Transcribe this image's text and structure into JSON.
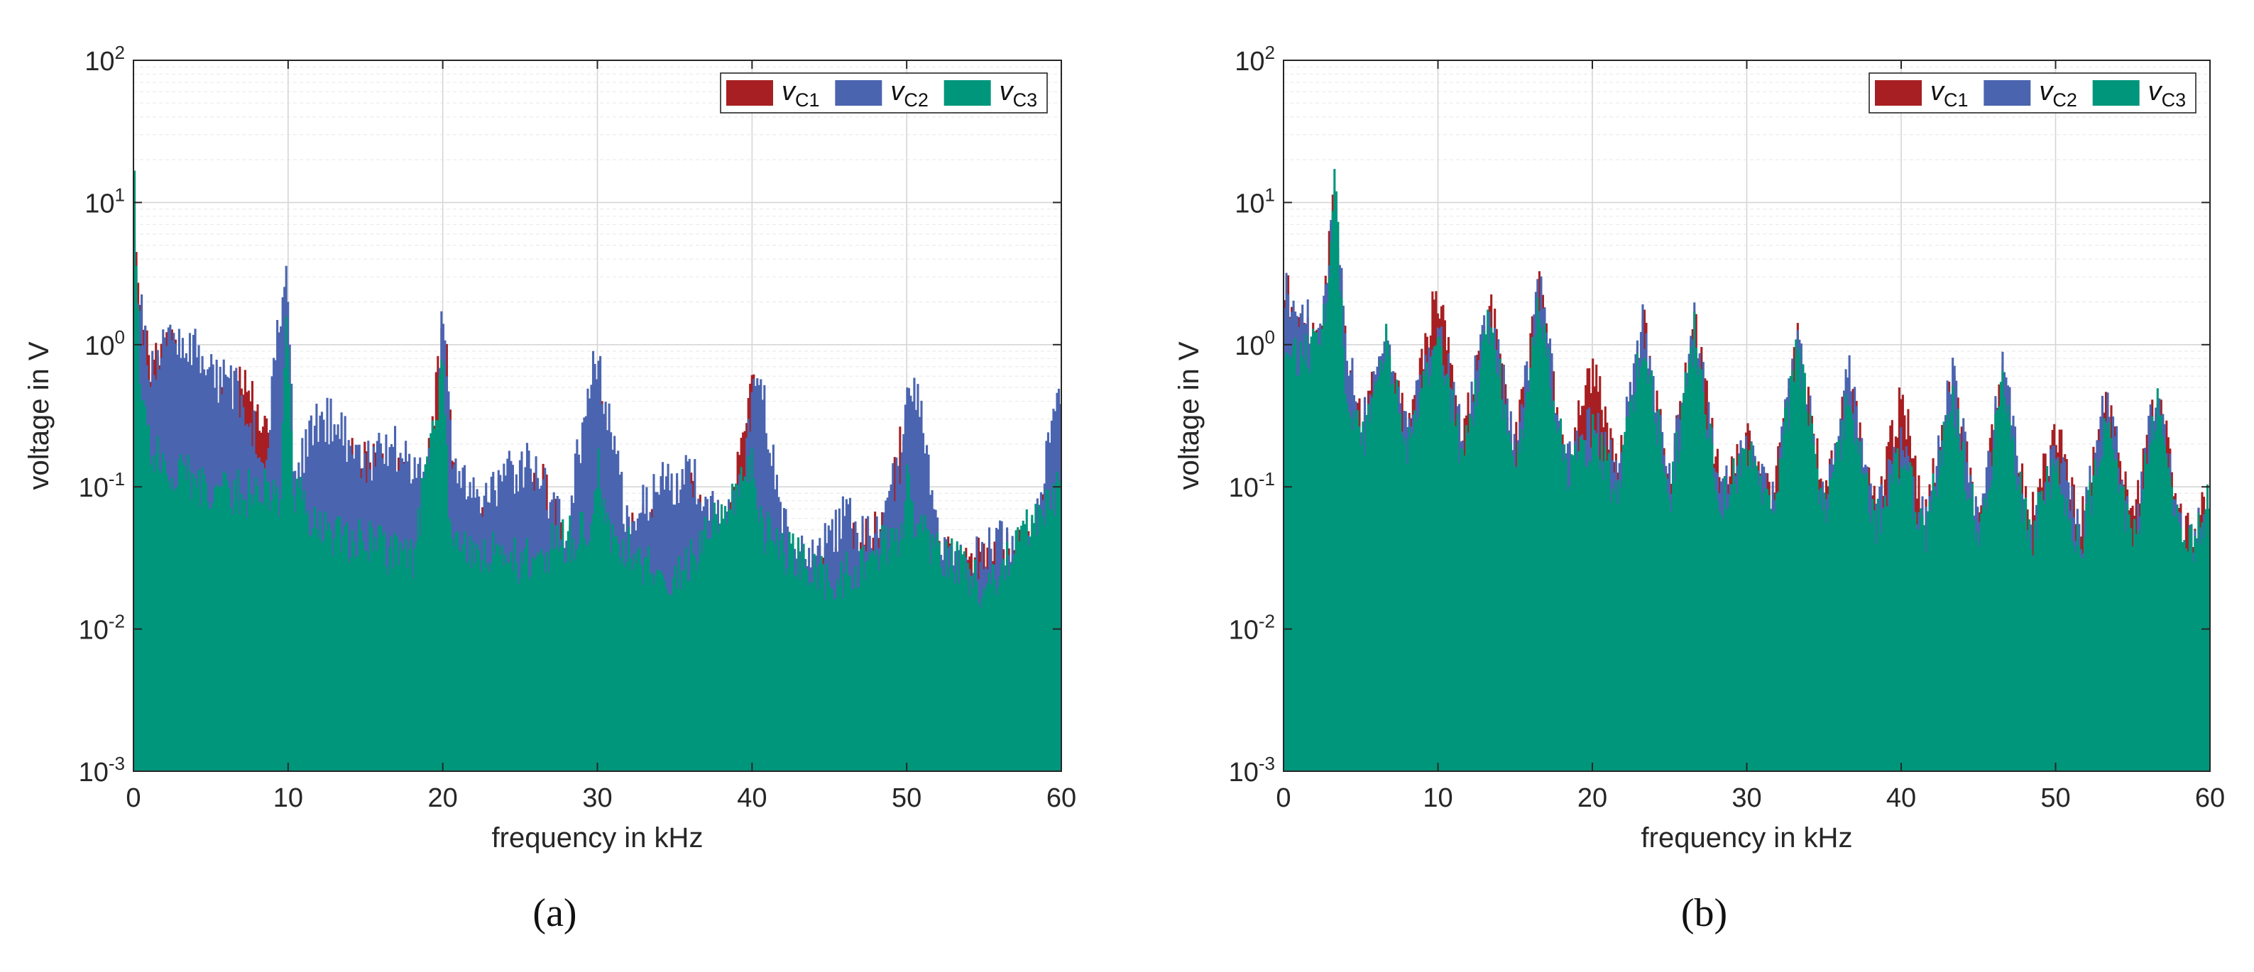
{
  "chart_data": [
    {
      "type": "bar",
      "panel": "(a)",
      "caption": "(a)",
      "xlabel": "frequency in kHz",
      "ylabel": "voltage in V",
      "xlim": [
        0,
        60
      ],
      "ylim": [
        0.001,
        100
      ],
      "yscale": "log",
      "xticks": [
        "0",
        "10",
        "20",
        "30",
        "40",
        "50",
        "60"
      ],
      "xtick_values": [
        0,
        10,
        20,
        30,
        40,
        50,
        60
      ],
      "yticks": [
        {
          "base": "10",
          "exp": "-3"
        },
        {
          "base": "10",
          "exp": "-2"
        },
        {
          "base": "10",
          "exp": "-1"
        },
        {
          "base": "10",
          "exp": "0"
        },
        {
          "base": "10",
          "exp": "1"
        },
        {
          "base": "10",
          "exp": "2"
        }
      ],
      "ytick_values": [
        0.001,
        0.01,
        0.1,
        1,
        10,
        100
      ],
      "grid": true,
      "legend_position": "top-right",
      "series": [
        {
          "name": "vC1",
          "label": "v",
          "sub": "C1",
          "color": "#a71f22",
          "floor": 0.022,
          "points": [
            [
              0,
              6
            ],
            [
              0.15,
              3.5
            ],
            [
              0.4,
              2.2
            ],
            [
              1,
              0.8
            ],
            [
              2.6,
              0.95
            ],
            [
              3.3,
              0.55
            ],
            [
              4.5,
              0.25
            ],
            [
              7.2,
              0.55
            ],
            [
              8.8,
              0.22
            ],
            [
              9.9,
              0.4
            ],
            [
              10.2,
              0.08
            ],
            [
              12.5,
              0.18
            ],
            [
              17,
              0.12
            ],
            [
              18.5,
              0.07
            ],
            [
              20.1,
              1.3
            ],
            [
              21,
              0.05
            ],
            [
              24,
              0.07
            ],
            [
              26.5,
              0.1
            ],
            [
              28,
              0.035
            ],
            [
              29.5,
              0.05
            ],
            [
              30.2,
              0.32
            ],
            [
              31.5,
              0.04
            ],
            [
              34,
              0.06
            ],
            [
              36,
              0.1
            ],
            [
              38,
              0.03
            ],
            [
              40.1,
              0.5
            ],
            [
              41.5,
              0.03
            ],
            [
              45,
              0.03
            ],
            [
              47,
              0.04
            ],
            [
              48.5,
              0.05
            ],
            [
              50.2,
              0.45
            ],
            [
              51,
              0.03
            ],
            [
              54,
              0.03
            ],
            [
              56,
              0.03
            ],
            [
              58,
              0.04
            ],
            [
              59.3,
              0.1
            ],
            [
              60,
              0.09
            ]
          ]
        },
        {
          "name": "vC2",
          "label": "v",
          "sub": "C2",
          "color": "#4a64b0",
          "floor": 0.02,
          "points": [
            [
              0,
              4
            ],
            [
              0.3,
              2.5
            ],
            [
              1,
              0.7
            ],
            [
              2,
              0.9
            ],
            [
              3.3,
              1.2
            ],
            [
              5,
              0.6
            ],
            [
              7,
              0.45
            ],
            [
              8.5,
              0.15
            ],
            [
              9.9,
              4.5
            ],
            [
              10.4,
              0.1
            ],
            [
              11.8,
              0.3
            ],
            [
              13,
              0.28
            ],
            [
              15,
              0.15
            ],
            [
              16.5,
              0.2
            ],
            [
              18,
              0.15
            ],
            [
              19.5,
              0.12
            ],
            [
              20,
              2.1
            ],
            [
              20.6,
              0.15
            ],
            [
              22,
              0.08
            ],
            [
              24,
              0.12
            ],
            [
              25.5,
              0.15
            ],
            [
              28,
              0.05
            ],
            [
              29.8,
              0.95
            ],
            [
              30.6,
              0.35
            ],
            [
              32,
              0.05
            ],
            [
              34,
              0.1
            ],
            [
              36,
              0.12
            ],
            [
              38,
              0.05
            ],
            [
              39.5,
              0.1
            ],
            [
              40,
              0.55
            ],
            [
              40.8,
              0.4
            ],
            [
              42,
              0.05
            ],
            [
              44,
              0.03
            ],
            [
              46,
              0.06
            ],
            [
              48,
              0.04
            ],
            [
              49.6,
              0.15
            ],
            [
              50,
              0.57
            ],
            [
              50.8,
              0.4
            ],
            [
              52,
              0.04
            ],
            [
              54,
              0.03
            ],
            [
              56,
              0.04
            ],
            [
              58,
              0.03
            ],
            [
              59.5,
              0.35
            ],
            [
              60,
              0.38
            ]
          ]
        },
        {
          "name": "vC3",
          "label": "v",
          "sub": "C3",
          "color": "#00967c",
          "floor": 0.012,
          "points": [
            [
              0,
              30
            ],
            [
              0.2,
              2.5
            ],
            [
              0.5,
              0.35
            ],
            [
              1,
              0.2
            ],
            [
              3,
              0.12
            ],
            [
              6,
              0.09
            ],
            [
              9.5,
              0.09
            ],
            [
              9.9,
              1.6
            ],
            [
              10.3,
              0.1
            ],
            [
              12,
              0.05
            ],
            [
              15,
              0.04
            ],
            [
              18,
              0.03
            ],
            [
              20,
              0.65
            ],
            [
              20.5,
              0.04
            ],
            [
              25,
              0.03
            ],
            [
              29.6,
              0.05
            ],
            [
              30,
              0.17
            ],
            [
              30.5,
              0.05
            ],
            [
              35,
              0.02
            ],
            [
              40,
              0.15
            ],
            [
              40.5,
              0.05
            ],
            [
              45,
              0.02
            ],
            [
              49.8,
              0.05
            ],
            [
              50,
              0.16
            ],
            [
              50.4,
              0.05
            ],
            [
              55,
              0.02
            ],
            [
              59.5,
              0.08
            ],
            [
              60,
              0.1
            ]
          ]
        }
      ],
      "legend": [
        {
          "label": "v",
          "sub": "C1",
          "color": "#a71f22"
        },
        {
          "label": "v",
          "sub": "C2",
          "color": "#4a64b0"
        },
        {
          "label": "v",
          "sub": "C3",
          "color": "#00967c"
        }
      ]
    },
    {
      "type": "bar",
      "panel": "(b)",
      "caption": "(b)",
      "xlabel": "frequency in kHz",
      "ylabel": "voltage in V",
      "xlim": [
        0,
        60
      ],
      "ylim": [
        0.001,
        100
      ],
      "yscale": "log",
      "xticks": [
        "0",
        "10",
        "20",
        "30",
        "40",
        "50",
        "60"
      ],
      "xtick_values": [
        0,
        10,
        20,
        30,
        40,
        50,
        60
      ],
      "yticks": [
        {
          "base": "10",
          "exp": "-3"
        },
        {
          "base": "10",
          "exp": "-2"
        },
        {
          "base": "10",
          "exp": "-1"
        },
        {
          "base": "10",
          "exp": "0"
        },
        {
          "base": "10",
          "exp": "1"
        },
        {
          "base": "10",
          "exp": "2"
        }
      ],
      "ytick_values": [
        0.001,
        0.01,
        0.1,
        1,
        10,
        100
      ],
      "grid": true,
      "legend_position": "top-right",
      "series": [
        {
          "name": "vC1",
          "label": "v",
          "sub": "C1",
          "color": "#a71f22",
          "floor": 0.04,
          "points": [
            [
              0,
              3.3
            ],
            [
              0.5,
              1.5
            ],
            [
              1.5,
              1.2
            ],
            [
              2.5,
              1.4
            ],
            [
              3.3,
              12
            ],
            [
              4,
              1.0
            ],
            [
              5,
              0.25
            ],
            [
              6.5,
              0.9
            ],
            [
              8,
              0.25
            ],
            [
              10,
              2.4
            ],
            [
              11.5,
              0.22
            ],
            [
              13.5,
              1.6
            ],
            [
              15,
              0.2
            ],
            [
              16.6,
              2.5
            ],
            [
              18.3,
              0.14
            ],
            [
              20,
              0.7
            ],
            [
              21.6,
              0.12
            ],
            [
              23.3,
              1.3
            ],
            [
              25,
              0.11
            ],
            [
              26.6,
              1.4
            ],
            [
              28.3,
              0.09
            ],
            [
              30,
              0.2
            ],
            [
              31.6,
              0.08
            ],
            [
              33.3,
              1.0
            ],
            [
              35,
              0.08
            ],
            [
              36.6,
              0.5
            ],
            [
              38.3,
              0.07
            ],
            [
              40,
              0.4
            ],
            [
              41.6,
              0.06
            ],
            [
              43.3,
              0.55
            ],
            [
              45,
              0.05
            ],
            [
              46.6,
              0.6
            ],
            [
              48.3,
              0.05
            ],
            [
              50,
              0.27
            ],
            [
              51.6,
              0.05
            ],
            [
              53.3,
              0.4
            ],
            [
              55,
              0.05
            ],
            [
              56.6,
              0.45
            ],
            [
              58.3,
              0.04
            ],
            [
              60,
              0.09
            ]
          ]
        },
        {
          "name": "vC2",
          "label": "v",
          "sub": "C2",
          "color": "#4a64b0",
          "floor": 0.035,
          "points": [
            [
              0,
              2.8
            ],
            [
              0.5,
              1.6
            ],
            [
              1.5,
              1.4
            ],
            [
              2.5,
              1.5
            ],
            [
              3.3,
              15
            ],
            [
              4,
              1.2
            ],
            [
              5,
              0.25
            ],
            [
              6.6,
              1.3
            ],
            [
              8,
              0.22
            ],
            [
              10,
              1.5
            ],
            [
              11.6,
              0.21
            ],
            [
              13.3,
              1.8
            ],
            [
              15,
              0.17
            ],
            [
              16.6,
              2.6
            ],
            [
              18.3,
              0.13
            ],
            [
              20,
              0.28
            ],
            [
              21.6,
              0.12
            ],
            [
              23.3,
              1.4
            ],
            [
              25,
              0.1
            ],
            [
              26.6,
              1.5
            ],
            [
              28.3,
              0.08
            ],
            [
              30,
              0.2
            ],
            [
              31.6,
              0.07
            ],
            [
              33.3,
              1.1
            ],
            [
              35,
              0.07
            ],
            [
              36.6,
              0.6
            ],
            [
              38.3,
              0.06
            ],
            [
              40,
              0.18
            ],
            [
              41.6,
              0.05
            ],
            [
              43.3,
              0.6
            ],
            [
              45,
              0.05
            ],
            [
              46.6,
              0.7
            ],
            [
              48.3,
              0.04
            ],
            [
              50,
              0.2
            ],
            [
              51.6,
              0.04
            ],
            [
              53.3,
              0.45
            ],
            [
              55,
              0.04
            ],
            [
              56.6,
              0.55
            ],
            [
              58.3,
              0.035
            ],
            [
              60,
              0.09
            ]
          ]
        },
        {
          "name": "vC3",
          "label": "v",
          "sub": "C3",
          "color": "#00967c",
          "floor": 0.03,
          "points": [
            [
              0,
              1.2
            ],
            [
              0.5,
              0.9
            ],
            [
              1.5,
              0.9
            ],
            [
              2.5,
              0.95
            ],
            [
              3.3,
              13
            ],
            [
              4,
              0.6
            ],
            [
              5,
              0.18
            ],
            [
              6.6,
              1.0
            ],
            [
              8,
              0.18
            ],
            [
              10,
              1.0
            ],
            [
              11.6,
              0.16
            ],
            [
              13.3,
              1.5
            ],
            [
              15,
              0.13
            ],
            [
              16.6,
              2.0
            ],
            [
              18.3,
              0.11
            ],
            [
              20,
              0.22
            ],
            [
              21.6,
              0.09
            ],
            [
              23.3,
              1.1
            ],
            [
              25,
              0.08
            ],
            [
              26.6,
              1.2
            ],
            [
              28.3,
              0.07
            ],
            [
              30,
              0.17
            ],
            [
              31.6,
              0.06
            ],
            [
              33.3,
              0.9
            ],
            [
              35,
              0.06
            ],
            [
              36.6,
              0.4
            ],
            [
              38.3,
              0.05
            ],
            [
              40,
              0.15
            ],
            [
              41.6,
              0.05
            ],
            [
              43.3,
              0.45
            ],
            [
              45,
              0.04
            ],
            [
              46.6,
              0.5
            ],
            [
              48.3,
              0.04
            ],
            [
              50,
              0.15
            ],
            [
              51.6,
              0.035
            ],
            [
              53.3,
              0.35
            ],
            [
              55,
              0.035
            ],
            [
              56.6,
              0.4
            ],
            [
              58.3,
              0.03
            ],
            [
              60,
              0.08
            ]
          ]
        }
      ],
      "legend": [
        {
          "label": "v",
          "sub": "C1",
          "color": "#a71f22"
        },
        {
          "label": "v",
          "sub": "C2",
          "color": "#4a64b0"
        },
        {
          "label": "v",
          "sub": "C3",
          "color": "#00967c"
        }
      ]
    }
  ]
}
